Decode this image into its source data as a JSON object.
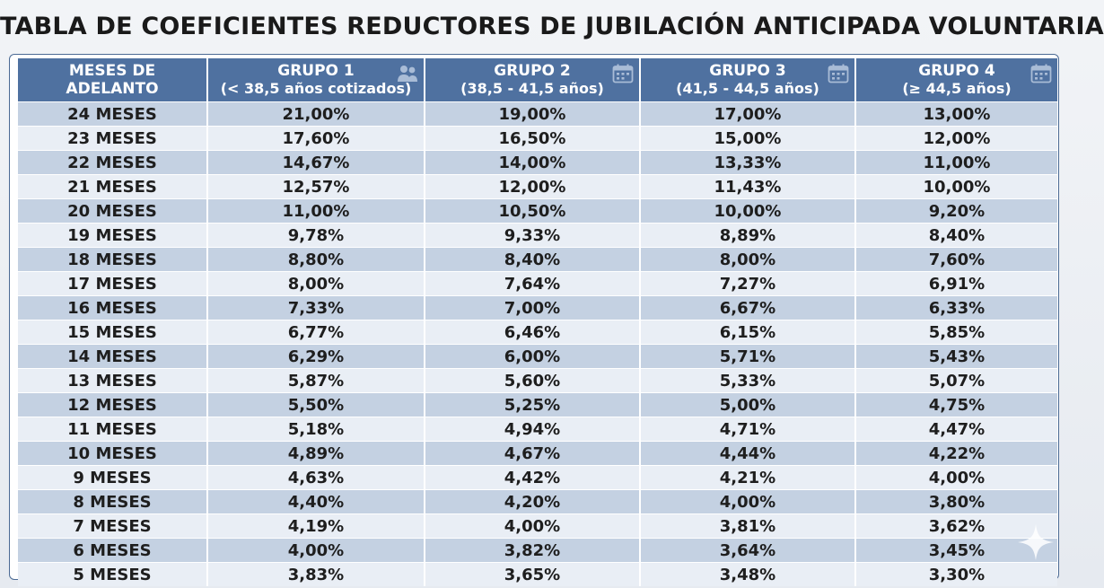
{
  "title": "TABLA DE COEFICIENTES REDUCTORES DE JUBILACIÓN ANTICIPADA VOLUNTARIA",
  "columns": [
    {
      "line1": "MESES DE",
      "line2": "ADELANTO",
      "icon": ""
    },
    {
      "line1": "GRUPO 1",
      "line2": "(< 38,5 años cotizados)",
      "icon": "people-icon"
    },
    {
      "line1": "GRUPO 2",
      "line2": "(38,5 - 41,5 años)",
      "icon": "calendar-icon"
    },
    {
      "line1": "GRUPO 3",
      "line2": "(41,5 - 44,5 años)",
      "icon": "calendar-icon"
    },
    {
      "line1": "GRUPO 4",
      "line2": "(≥ 44,5 años)",
      "icon": "calendar-icon"
    }
  ],
  "rows": [
    [
      "24 MESES",
      "21,00%",
      "19,00%",
      "17,00%",
      "13,00%"
    ],
    [
      "23 MESES",
      "17,60%",
      "16,50%",
      "15,00%",
      "12,00%"
    ],
    [
      "22 MESES",
      "14,67%",
      "14,00%",
      "13,33%",
      "11,00%"
    ],
    [
      "21 MESES",
      "12,57%",
      "12,00%",
      "11,43%",
      "10,00%"
    ],
    [
      "20 MESES",
      "11,00%",
      "10,50%",
      "10,00%",
      "9,20%"
    ],
    [
      "19 MESES",
      "9,78%",
      "9,33%",
      "8,89%",
      "8,40%"
    ],
    [
      "18 MESES",
      "8,80%",
      "8,40%",
      "8,00%",
      "7,60%"
    ],
    [
      "17 MESES",
      "8,00%",
      "7,64%",
      "7,27%",
      "6,91%"
    ],
    [
      "16 MESES",
      "7,33%",
      "7,00%",
      "6,67%",
      "6,33%"
    ],
    [
      "15 MESES",
      "6,77%",
      "6,46%",
      "6,15%",
      "5,85%"
    ],
    [
      "14 MESES",
      "6,29%",
      "6,00%",
      "5,71%",
      "5,43%"
    ],
    [
      "13 MESES",
      "5,87%",
      "5,60%",
      "5,33%",
      "5,07%"
    ],
    [
      "12 MESES",
      "5,50%",
      "5,25%",
      "5,00%",
      "4,75%"
    ],
    [
      "11 MESES",
      "5,18%",
      "4,94%",
      "4,71%",
      "4,47%"
    ],
    [
      "10 MESES",
      "4,89%",
      "4,67%",
      "4,44%",
      "4,22%"
    ],
    [
      "9 MESES",
      "4,63%",
      "4,42%",
      "4,21%",
      "4,00%"
    ],
    [
      "8 MESES",
      "4,40%",
      "4,20%",
      "4,00%",
      "3,80%"
    ],
    [
      "7 MESES",
      "4,19%",
      "4,00%",
      "3,81%",
      "3,62%"
    ],
    [
      "6 MESES",
      "4,00%",
      "3,82%",
      "3,64%",
      "3,45%"
    ],
    [
      "5 MESES",
      "3,83%",
      "3,65%",
      "3,48%",
      "3,30%"
    ]
  ],
  "colors": {
    "header_bg": "#4f71a0",
    "row_dark": "#c4d1e2",
    "row_light": "#e9eef5",
    "border": "#4b6a94"
  },
  "decorations": {
    "corner_icon": "sparkle-icon"
  }
}
